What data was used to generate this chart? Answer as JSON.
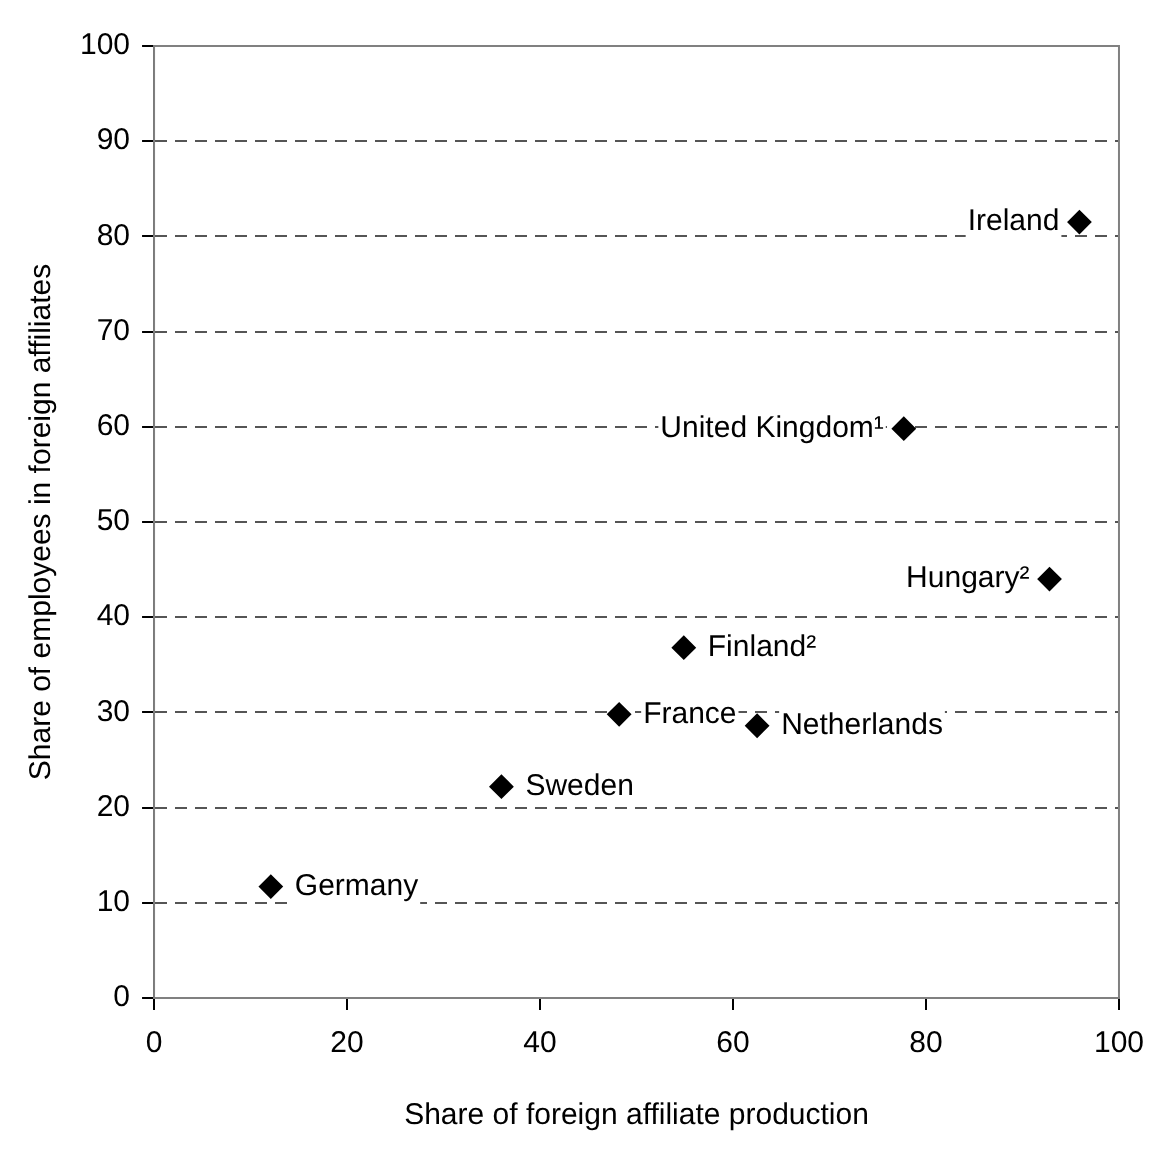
{
  "chart_data": {
    "type": "scatter",
    "xlabel": "Share of foreign affiliate production",
    "ylabel": "Share of employees in foreign affiliates",
    "x": [
      95.9,
      77.7,
      92.8,
      54.9,
      48.2,
      62.5,
      36.0,
      12.1
    ],
    "series": [
      {
        "color": "#000000",
        "values": [
          81.5,
          59.8,
          44.0,
          36.8,
          29.8,
          28.6,
          22.2,
          11.7
        ]
      }
    ],
    "xlim": [
      0,
      100
    ],
    "xticks": [
      0,
      20,
      40,
      60,
      80,
      100
    ],
    "ylim": [
      0,
      100
    ],
    "yticks": [
      0,
      10,
      20,
      30,
      40,
      50,
      60,
      70,
      80,
      90,
      100
    ],
    "grid": "y",
    "legend": false,
    "marker": "diamond",
    "annotations": [
      {
        "text": "Ireland",
        "x": 95.9,
        "y": 81.5
      },
      {
        "text": "United Kingdom¹",
        "x": 77.7,
        "y": 59.8
      },
      {
        "text": "Hungary²",
        "x": 92.8,
        "y": 44.0
      },
      {
        "text": "Finland²",
        "x": 54.9,
        "y": 36.8
      },
      {
        "text": "France",
        "x": 48.2,
        "y": 29.8
      },
      {
        "text": "Netherlands",
        "x": 62.5,
        "y": 28.6
      },
      {
        "text": "Sweden",
        "x": 36.0,
        "y": 22.2
      },
      {
        "text": "Germany",
        "x": 12.1,
        "y": 11.7
      }
    ]
  }
}
